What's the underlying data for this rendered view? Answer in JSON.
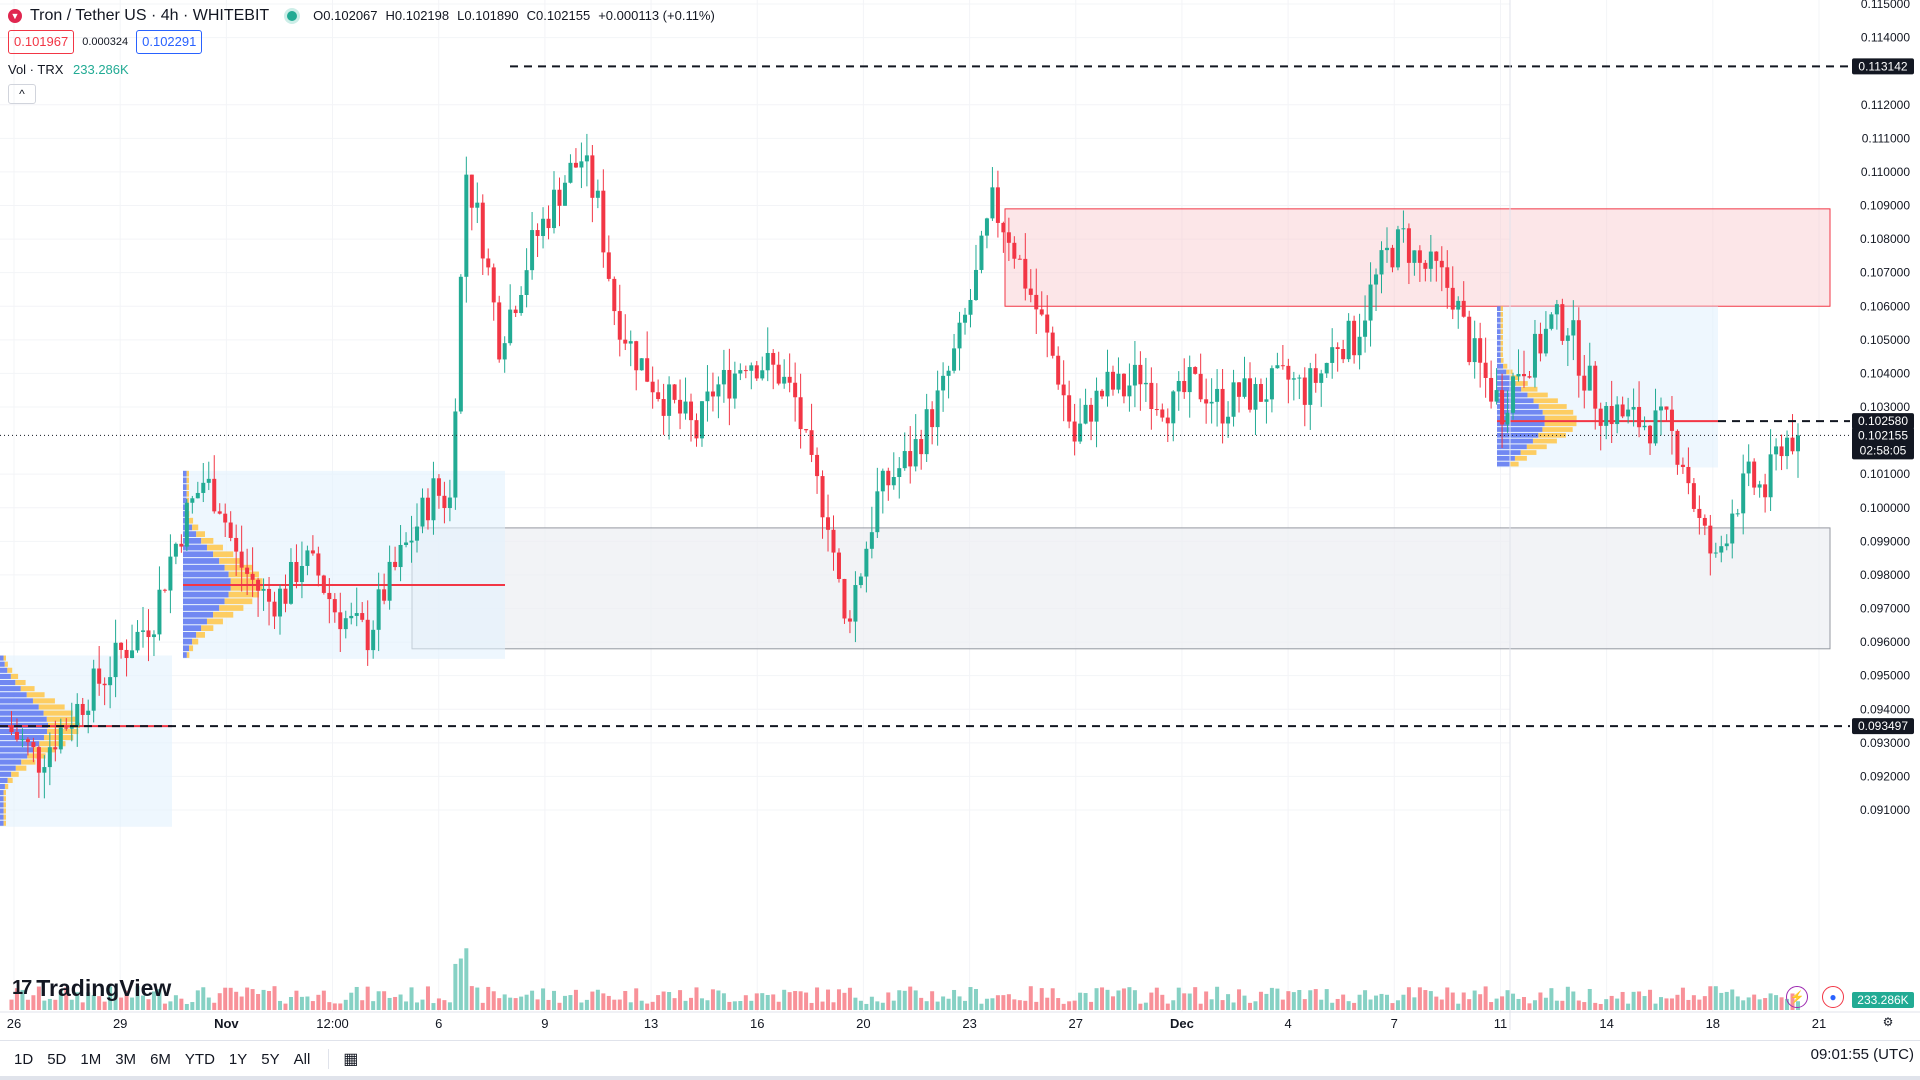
{
  "legend": {
    "symbol": "Tron / Tether US · 4h · WHITEBIT",
    "ohlc": {
      "open": "O0.102067",
      "high": "H0.102198",
      "low": "L0.101890",
      "close": "C0.102155",
      "change": "+0.000113 (+0.11%)"
    },
    "bid": "0.101967",
    "spread": "0.000324",
    "ask": "0.102291",
    "volume_label": "Vol · TRX",
    "volume_value": "233.286K",
    "collapse_icon": "chevron-up-icon"
  },
  "brand": "TradingView",
  "bottom_bar": {
    "ranges": [
      "1D",
      "5D",
      "1M",
      "3M",
      "6M",
      "YTD",
      "1Y",
      "5Y",
      "All"
    ],
    "calendar_icon": "calendar-range-icon",
    "clock": "09:01:55 (UTC)"
  },
  "colors": {
    "up": "#22ab94",
    "down": "#f23645",
    "accent_blue": "#2962ff",
    "profile_blue": "#5b74f0",
    "profile_yellow": "#ffc547",
    "zone_red": "#f9c8cc",
    "zone_gray": "#eceef2"
  },
  "chart_data": {
    "type": "candlestick",
    "symbol": "TRX/USDT",
    "interval": "4h",
    "ylim": [
      0.091,
      0.115
    ],
    "y_ticks": [
      "0.115000",
      "0.114000",
      "0.112000",
      "0.111000",
      "0.110000",
      "0.109000",
      "0.108000",
      "0.107000",
      "0.106000",
      "0.105000",
      "0.104000",
      "0.103000",
      "0.101000",
      "0.100000",
      "0.099000",
      "0.098000",
      "0.097000",
      "0.096000",
      "0.095000",
      "0.094000",
      "0.093000",
      "0.092000",
      "0.091000"
    ],
    "x_ticks": [
      "26",
      "29",
      "Nov",
      "12:00",
      "6",
      "9",
      "13",
      "16",
      "20",
      "23",
      "27",
      "Dec",
      "4",
      "7",
      "11",
      "14",
      "18",
      "21"
    ],
    "price_labels": {
      "level_high": "0.113142",
      "poc_recent": "0.102580",
      "last_price": "0.102155",
      "countdown": "02:58:05",
      "level_low": "0.093497",
      "volume_last": "233.286K"
    },
    "levels": [
      0.113142,
      0.093497
    ],
    "zones": [
      {
        "type": "resistance",
        "from": 0.106,
        "to": 0.1089
      },
      {
        "type": "support",
        "from": 0.0958,
        "to": 0.0994
      }
    ],
    "volume_profiles": [
      {
        "poc": 0.093497,
        "range": [
          0.0905,
          0.0956
        ]
      },
      {
        "poc": 0.0977,
        "range": [
          0.0955,
          0.1011
        ]
      },
      {
        "poc": 0.10258,
        "range": [
          0.1012,
          0.106
        ]
      }
    ],
    "close_path": [
      0.0935,
      0.093,
      0.0925,
      0.0932,
      0.0938,
      0.0945,
      0.095,
      0.0957,
      0.0962,
      0.0968,
      0.0985,
      0.0998,
      0.1008,
      0.1002,
      0.0985,
      0.0978,
      0.0972,
      0.0975,
      0.0985,
      0.098,
      0.097,
      0.0965,
      0.0962,
      0.0975,
      0.0985,
      0.0995,
      0.1005,
      0.1002,
      0.11,
      0.108,
      0.105,
      0.1063,
      0.1078,
      0.1088,
      0.1098,
      0.1104,
      0.109,
      0.106,
      0.1048,
      0.104,
      0.1033,
      0.1028,
      0.1022,
      0.1035,
      0.1038,
      0.1045,
      0.1043,
      0.104,
      0.1032,
      0.101,
      0.0998,
      0.0965,
      0.0982,
      0.1003,
      0.101,
      0.1015,
      0.1025,
      0.1035,
      0.105,
      0.1068,
      0.109,
      0.1082,
      0.1068,
      0.1055,
      0.104,
      0.102,
      0.103,
      0.1036,
      0.1035,
      0.104,
      0.1033,
      0.103,
      0.1036,
      0.1035,
      0.103,
      0.1034,
      0.1033,
      0.1036,
      0.1038,
      0.1035,
      0.104,
      0.105,
      0.105,
      0.1064,
      0.1075,
      0.108,
      0.1072,
      0.107,
      0.1064,
      0.1048,
      0.1038,
      0.103,
      0.1042,
      0.1046,
      0.1055,
      0.1055,
      0.104,
      0.103,
      0.1028,
      0.1026,
      0.1025,
      0.1024,
      0.1015,
      0.0995,
      0.0983,
      0.1,
      0.1008,
      0.1005,
      0.102,
      0.102155
    ]
  }
}
